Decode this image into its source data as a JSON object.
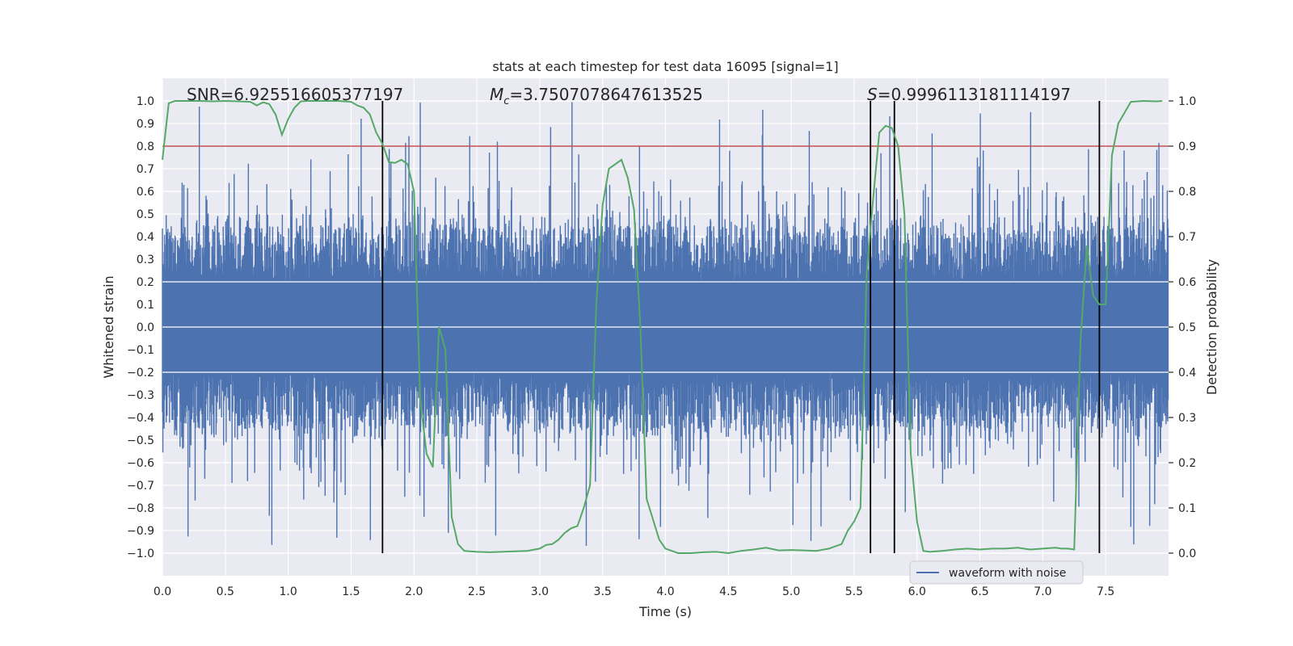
{
  "chart_data": {
    "type": "line",
    "title": "stats at each timestep for test data 16095 [signal=1]",
    "xlabel": "Time (s)",
    "ylabel": "Whitened strain",
    "ylabel_right": "Detection probability",
    "xlim": [
      0.0,
      8.0
    ],
    "ylim": [
      -1.1,
      1.1
    ],
    "ylim_right": [
      -0.05,
      1.05
    ],
    "x_ticks": [
      "0.0",
      "0.5",
      "1.0",
      "1.5",
      "2.0",
      "2.5",
      "3.0",
      "3.5",
      "4.0",
      "4.5",
      "5.0",
      "5.5",
      "6.0",
      "6.5",
      "7.0",
      "7.5"
    ],
    "y_ticks": [
      "1.0",
      "0.9",
      "0.8",
      "0.7",
      "0.6",
      "0.5",
      "0.4",
      "0.3",
      "0.2",
      "0.1",
      "0.0",
      "−0.1",
      "−0.2",
      "−0.3",
      "−0.4",
      "−0.5",
      "−0.6",
      "−0.7",
      "−0.8",
      "−0.9",
      "−1.0"
    ],
    "y_ticks_right": [
      "1.0",
      "0.9",
      "0.8",
      "0.7",
      "0.6",
      "0.5",
      "0.4",
      "0.3",
      "0.2",
      "0.1",
      "0.0"
    ],
    "annotations": {
      "snr": "SNR=6.925516605377197",
      "mc_symbol": "M",
      "mc_sub": "c",
      "mc_value": "=3.7507078647613525",
      "s_symbol": "S",
      "s_value": "=0.9996113181114197"
    },
    "legend": {
      "label": "waveform with noise",
      "placement": "lower-right"
    },
    "threshold": {
      "value": 0.8,
      "color": "#c44e52"
    },
    "vertical_lines": [
      1.75,
      5.63,
      5.82,
      7.45
    ],
    "waveform": {
      "name": "waveform with noise",
      "color": "#4c72b0",
      "core_abs": 0.2,
      "typical_abs": 0.4,
      "max_abs": 1.0
    },
    "probability": {
      "name": "detection probability",
      "color": "#55a868",
      "x": [
        0.0,
        0.05,
        0.1,
        0.2,
        0.3,
        0.4,
        0.5,
        0.6,
        0.7,
        0.75,
        0.8,
        0.85,
        0.9,
        0.95,
        1.0,
        1.05,
        1.1,
        1.15,
        1.2,
        1.3,
        1.4,
        1.5,
        1.55,
        1.6,
        1.65,
        1.7,
        1.75,
        1.8,
        1.85,
        1.9,
        1.95,
        2.0,
        2.05,
        2.1,
        2.15,
        2.2,
        2.25,
        2.3,
        2.35,
        2.4,
        2.5,
        2.6,
        2.7,
        2.8,
        2.9,
        3.0,
        3.05,
        3.1,
        3.15,
        3.2,
        3.25,
        3.3,
        3.35,
        3.4,
        3.45,
        3.5,
        3.55,
        3.6,
        3.65,
        3.7,
        3.75,
        3.8,
        3.85,
        3.9,
        3.95,
        4.0,
        4.05,
        4.1,
        4.2,
        4.3,
        4.4,
        4.5,
        4.6,
        4.7,
        4.8,
        4.9,
        5.0,
        5.1,
        5.2,
        5.3,
        5.35,
        5.4,
        5.45,
        5.5,
        5.55,
        5.6,
        5.65,
        5.7,
        5.75,
        5.8,
        5.85,
        5.9,
        5.95,
        6.0,
        6.05,
        6.1,
        6.2,
        6.3,
        6.4,
        6.5,
        6.6,
        6.7,
        6.8,
        6.9,
        7.0,
        7.1,
        7.15,
        7.2,
        7.25,
        7.3,
        7.35,
        7.4,
        7.45,
        7.5,
        7.55,
        7.6,
        7.7,
        7.8,
        7.9,
        7.95
      ],
      "y": [
        0.87,
        0.995,
        1.0,
        1.0,
        1.0,
        0.999,
        1.0,
        0.999,
        0.998,
        0.99,
        0.997,
        0.993,
        0.97,
        0.925,
        0.96,
        0.985,
        0.999,
        1.0,
        1.0,
        1.0,
        1.0,
        0.998,
        0.99,
        0.985,
        0.97,
        0.93,
        0.905,
        0.865,
        0.863,
        0.87,
        0.86,
        0.8,
        0.34,
        0.22,
        0.19,
        0.5,
        0.45,
        0.08,
        0.02,
        0.005,
        0.003,
        0.002,
        0.003,
        0.004,
        0.005,
        0.01,
        0.018,
        0.02,
        0.03,
        0.045,
        0.055,
        0.06,
        0.1,
        0.15,
        0.55,
        0.77,
        0.85,
        0.86,
        0.87,
        0.83,
        0.76,
        0.5,
        0.12,
        0.075,
        0.03,
        0.01,
        0.005,
        0.0,
        0.0,
        0.002,
        0.003,
        0.0,
        0.005,
        0.008,
        0.012,
        0.006,
        0.007,
        0.006,
        0.005,
        0.01,
        0.015,
        0.02,
        0.05,
        0.07,
        0.1,
        0.62,
        0.78,
        0.93,
        0.945,
        0.94,
        0.9,
        0.75,
        0.22,
        0.07,
        0.005,
        0.003,
        0.005,
        0.008,
        0.01,
        0.008,
        0.01,
        0.01,
        0.012,
        0.008,
        0.01,
        0.012,
        0.01,
        0.01,
        0.008,
        0.47,
        0.68,
        0.57,
        0.55,
        0.55,
        0.88,
        0.95,
        0.998,
        1.0,
        0.999,
        1.0
      ]
    }
  }
}
